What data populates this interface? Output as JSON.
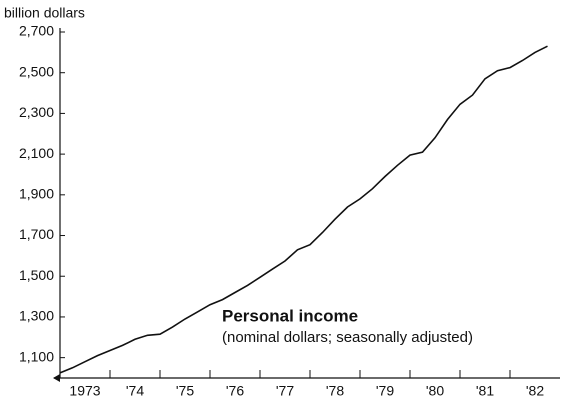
{
  "chart_data": {
    "type": "line",
    "y_axis_label": "billion dollars",
    "annotation_title": "Personal income",
    "annotation_subtitle": "(nominal dollars; seasonally adjusted)",
    "x": [
      1973.0,
      1973.25,
      1973.5,
      1973.75,
      1974.0,
      1974.25,
      1974.5,
      1974.75,
      1975.0,
      1975.25,
      1975.5,
      1975.75,
      1976.0,
      1976.25,
      1976.5,
      1976.75,
      1977.0,
      1977.25,
      1977.5,
      1977.75,
      1978.0,
      1978.25,
      1978.5,
      1978.75,
      1979.0,
      1979.25,
      1979.5,
      1979.75,
      1980.0,
      1980.25,
      1980.5,
      1980.75,
      1981.0,
      1981.25,
      1981.5,
      1981.75,
      1982.0,
      1982.25,
      1982.5,
      1982.75
    ],
    "series": [
      {
        "name": "Personal income",
        "color": "#111111",
        "values": [
          1025,
          1050,
          1080,
          1110,
          1135,
          1160,
          1190,
          1210,
          1215,
          1250,
          1290,
          1325,
          1360,
          1385,
          1420,
          1455,
          1495,
          1535,
          1575,
          1630,
          1655,
          1715,
          1780,
          1840,
          1880,
          1930,
          1990,
          2045,
          2095,
          2110,
          2180,
          2270,
          2345,
          2390,
          2470,
          2510,
          2525,
          2560,
          2600,
          2630
        ]
      }
    ],
    "xlim": [
      1973,
      1983
    ],
    "xticks": [
      {
        "value": 1973,
        "label": "1973"
      },
      {
        "value": 1974,
        "label": "'74"
      },
      {
        "value": 1975,
        "label": "'75"
      },
      {
        "value": 1976,
        "label": "'76"
      },
      {
        "value": 1977,
        "label": "'77"
      },
      {
        "value": 1978,
        "label": "'78"
      },
      {
        "value": 1979,
        "label": "'79"
      },
      {
        "value": 1980,
        "label": "'80"
      },
      {
        "value": 1981,
        "label": "'81"
      },
      {
        "value": 1982,
        "label": "'82"
      }
    ],
    "ylim": [
      1000,
      2700
    ],
    "yticks": [
      {
        "value": 1100,
        "label": "1,100"
      },
      {
        "value": 1300,
        "label": "1,300"
      },
      {
        "value": 1500,
        "label": "1,500"
      },
      {
        "value": 1700,
        "label": "1,700"
      },
      {
        "value": 1900,
        "label": "1,900"
      },
      {
        "value": 2100,
        "label": "2,100"
      },
      {
        "value": 2300,
        "label": "2,300"
      },
      {
        "value": 2500,
        "label": "2,500"
      },
      {
        "value": 2700,
        "label": "2,700"
      }
    ],
    "grid": false
  }
}
